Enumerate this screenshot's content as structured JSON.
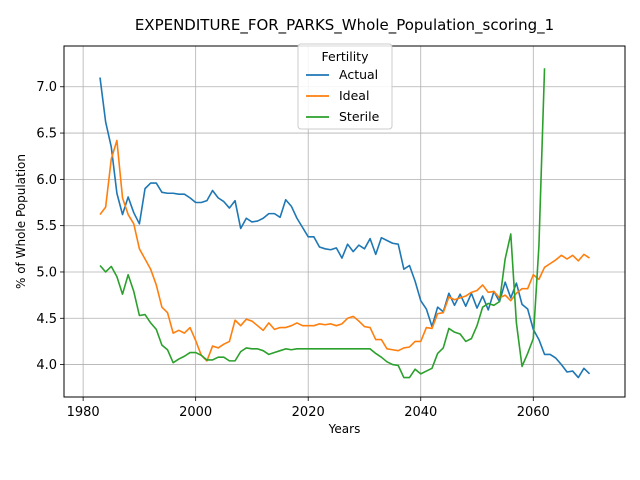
{
  "chart_data": {
    "type": "line",
    "title": "EXPENDITURE_FOR_PARKS_Whole_Population_scoring_1",
    "xlabel": "Years",
    "ylabel": "% of Whole Population",
    "xlim": [
      1976.6,
      2076.3
    ],
    "ylim": [
      3.65,
      7.44
    ],
    "xticks": [
      1980,
      2000,
      2020,
      2040,
      2060
    ],
    "yticks": [
      4.0,
      4.5,
      5.0,
      5.5,
      6.0,
      6.5,
      7.0
    ],
    "xtick_labels": [
      "1980",
      "2000",
      "2020",
      "2040",
      "2060"
    ],
    "ytick_labels": [
      "4.0",
      "4.5",
      "5.0",
      "5.5",
      "6.0",
      "6.5",
      "7.0"
    ],
    "grid": true,
    "legend": {
      "title": "Fertility",
      "placement": "upper center"
    },
    "series": [
      {
        "name": "Actual",
        "color": "#1f77b4",
        "x": [
          1983,
          1984,
          1985,
          1986,
          1987,
          1988,
          1989,
          1990,
          1991,
          1992,
          1993,
          1994,
          1995,
          1996,
          1997,
          1998,
          1999,
          2000,
          2001,
          2002,
          2003,
          2004,
          2005,
          2006,
          2007,
          2008,
          2009,
          2010,
          2011,
          2012,
          2013,
          2014,
          2015,
          2016,
          2017,
          2018,
          2019,
          2020,
          2021,
          2022,
          2023,
          2024,
          2025,
          2026,
          2027,
          2028,
          2029,
          2030,
          2031,
          2032,
          2033,
          2034,
          2035,
          2036,
          2037,
          2038,
          2039,
          2040,
          2041,
          2042,
          2043,
          2044,
          2045,
          2046,
          2047,
          2048,
          2049,
          2050,
          2051,
          2052,
          2053,
          2054,
          2055,
          2056,
          2057,
          2058,
          2059,
          2060,
          2061,
          2062,
          2063,
          2064,
          2065,
          2066,
          2067,
          2068,
          2069,
          2070
        ],
        "values": [
          7.1,
          6.62,
          6.35,
          5.85,
          5.62,
          5.81,
          5.64,
          5.52,
          5.9,
          5.96,
          5.96,
          5.86,
          5.85,
          5.85,
          5.84,
          5.84,
          5.8,
          5.75,
          5.75,
          5.77,
          5.88,
          5.8,
          5.76,
          5.69,
          5.77,
          5.47,
          5.58,
          5.54,
          5.55,
          5.58,
          5.63,
          5.63,
          5.59,
          5.78,
          5.71,
          5.58,
          5.48,
          5.38,
          5.38,
          5.27,
          5.25,
          5.24,
          5.26,
          5.15,
          5.3,
          5.22,
          5.29,
          5.25,
          5.36,
          5.19,
          5.37,
          5.34,
          5.31,
          5.3,
          5.03,
          5.07,
          4.9,
          4.69,
          4.6,
          4.41,
          4.62,
          4.57,
          4.77,
          4.64,
          4.76,
          4.63,
          4.77,
          4.61,
          4.74,
          4.59,
          4.79,
          4.68,
          4.89,
          4.72,
          4.88,
          4.65,
          4.6,
          4.38,
          4.27,
          4.11,
          4.11,
          4.07,
          4.0,
          3.92,
          3.93,
          3.86,
          3.96,
          3.9
        ]
      },
      {
        "name": "Ideal",
        "color": "#ff7f0e",
        "x": [
          1983,
          1984,
          1985,
          1986,
          1987,
          1988,
          1989,
          1990,
          1991,
          1992,
          1993,
          1994,
          1995,
          1996,
          1997,
          1998,
          1999,
          2000,
          2001,
          2002,
          2003,
          2004,
          2005,
          2006,
          2007,
          2008,
          2009,
          2010,
          2011,
          2012,
          2013,
          2014,
          2015,
          2016,
          2017,
          2018,
          2019,
          2020,
          2021,
          2022,
          2023,
          2024,
          2025,
          2026,
          2027,
          2028,
          2029,
          2030,
          2031,
          2032,
          2033,
          2034,
          2035,
          2036,
          2037,
          2038,
          2039,
          2040,
          2041,
          2042,
          2043,
          2044,
          2045,
          2046,
          2047,
          2048,
          2049,
          2050,
          2051,
          2052,
          2053,
          2054,
          2055,
          2056,
          2057,
          2058,
          2059,
          2060,
          2061,
          2062,
          2063,
          2064,
          2065,
          2066,
          2067,
          2068,
          2069,
          2070
        ],
        "values": [
          5.62,
          5.7,
          6.22,
          6.42,
          5.8,
          5.62,
          5.52,
          5.25,
          5.14,
          5.03,
          4.86,
          4.62,
          4.56,
          4.34,
          4.37,
          4.34,
          4.4,
          4.26,
          4.1,
          4.04,
          4.2,
          4.18,
          4.22,
          4.25,
          4.48,
          4.42,
          4.49,
          4.47,
          4.42,
          4.37,
          4.45,
          4.38,
          4.4,
          4.4,
          4.42,
          4.45,
          4.42,
          4.42,
          4.42,
          4.44,
          4.43,
          4.44,
          4.42,
          4.44,
          4.5,
          4.52,
          4.47,
          4.41,
          4.4,
          4.27,
          4.27,
          4.17,
          4.16,
          4.15,
          4.18,
          4.19,
          4.25,
          4.25,
          4.4,
          4.39,
          4.55,
          4.56,
          4.73,
          4.7,
          4.72,
          4.74,
          4.78,
          4.8,
          4.86,
          4.78,
          4.79,
          4.72,
          4.75,
          4.69,
          4.77,
          4.82,
          4.82,
          4.97,
          4.92,
          5.05,
          5.09,
          5.13,
          5.18,
          5.14,
          5.18,
          5.12,
          5.19,
          5.15
        ]
      },
      {
        "name": "Sterile",
        "color": "#2ca02c",
        "x": [
          1983,
          1984,
          1985,
          1986,
          1987,
          1988,
          1989,
          1990,
          1991,
          1992,
          1993,
          1994,
          1995,
          1996,
          1997,
          1998,
          1999,
          2000,
          2001,
          2002,
          2003,
          2004,
          2005,
          2006,
          2007,
          2008,
          2009,
          2010,
          2011,
          2012,
          2013,
          2014,
          2015,
          2016,
          2017,
          2018,
          2019,
          2020,
          2021,
          2022,
          2023,
          2024,
          2025,
          2026,
          2027,
          2028,
          2029,
          2030,
          2031,
          2032,
          2033,
          2034,
          2035,
          2036,
          2037,
          2038,
          2039,
          2040,
          2041,
          2042,
          2043,
          2044,
          2045,
          2046,
          2047,
          2048,
          2049,
          2050,
          2051,
          2052,
          2053,
          2054,
          2055,
          2056,
          2057,
          2058,
          2059,
          2060,
          2061,
          2062
        ],
        "values": [
          5.07,
          5.0,
          5.06,
          4.95,
          4.76,
          4.97,
          4.79,
          4.53,
          4.54,
          4.45,
          4.38,
          4.21,
          4.16,
          4.02,
          4.06,
          4.09,
          4.13,
          4.13,
          4.1,
          4.05,
          4.05,
          4.08,
          4.08,
          4.04,
          4.04,
          4.14,
          4.18,
          4.17,
          4.17,
          4.15,
          4.11,
          4.13,
          4.15,
          4.17,
          4.16,
          4.17,
          4.17,
          4.17,
          4.17,
          4.17,
          4.17,
          4.17,
          4.17,
          4.17,
          4.17,
          4.17,
          4.17,
          4.17,
          4.17,
          4.12,
          4.08,
          4.03,
          4.0,
          3.99,
          3.86,
          3.86,
          3.95,
          3.9,
          3.93,
          3.96,
          4.12,
          4.18,
          4.39,
          4.35,
          4.33,
          4.25,
          4.28,
          4.42,
          4.62,
          4.66,
          4.64,
          4.68,
          5.14,
          5.41,
          4.45,
          3.98,
          4.12,
          4.28,
          5.28,
          7.2
        ]
      }
    ]
  }
}
